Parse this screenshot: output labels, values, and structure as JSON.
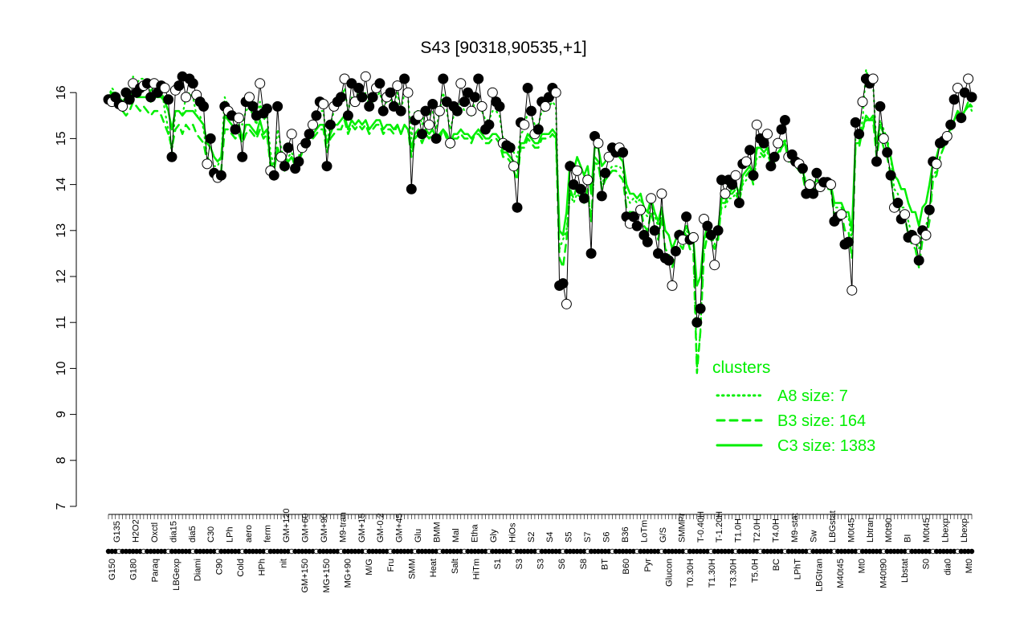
{
  "chart_data": {
    "type": "line",
    "title": "S43 [90318,90535,+1]",
    "xlabel": "",
    "ylabel": "",
    "ylim": [
      7,
      16.6
    ],
    "yticks": [
      7,
      8,
      9,
      10,
      11,
      12,
      13,
      14,
      15,
      16
    ],
    "grid": false,
    "x_labels_top": [
      "G135",
      "H2O2",
      "Oxctl",
      "dia15",
      "dia5",
      "C30",
      "LPh",
      "aero",
      "ferm",
      "GM+120",
      "GM+60",
      "GM+90",
      "M9-tran",
      "GM+15",
      "GM-0.2",
      "GM+45",
      "Glu",
      "BMM",
      "Mal",
      "Etha",
      "Gly",
      "HiOs",
      "S2",
      "S4",
      "S5",
      "S7",
      "S6",
      "B36",
      "LoTm",
      "G/S",
      "SMMPr",
      "T-0.40H",
      "T-1.20H",
      "T1.0H",
      "T2.0H",
      "T4.0H",
      "M9-stat",
      "Sw",
      "LBGstat",
      "M0t45",
      "Lbtran",
      "M0t90",
      "BI",
      "M0t45",
      "Lbexp",
      "Lbexp"
    ],
    "x_labels_bottom": [
      "G150",
      "G180",
      "Paraq",
      "LBGexp",
      "Diami",
      "C90",
      "Cold",
      "HPh",
      "nit",
      "GM+150",
      "MG+150",
      "MG+90",
      "M/G",
      "Fru",
      "SMM",
      "Heat",
      "Salt",
      "HiTm",
      "S1",
      "S3",
      "S3",
      "S6",
      "S8",
      "BT",
      "B60",
      "Pyr",
      "Glucon",
      "T0.30H",
      "T1.30H",
      "T3.30H",
      "T5.0H",
      "BC",
      "LPhT",
      "LBGtran",
      "M40t45",
      "Mt0",
      "M40t90",
      "Lbstat",
      "S0",
      "dia0",
      "Mt0"
    ],
    "series": [
      {
        "name": "",
        "role": "observed",
        "color": "#000000",
        "values": [
          15.85,
          15.8,
          15.9,
          15.75,
          15.7,
          16.0,
          15.85,
          16.2,
          16.0,
          16.1,
          16.15,
          16.2,
          15.9,
          16.2,
          16.0,
          16.15,
          16.1,
          15.85,
          14.6,
          16.05,
          16.15,
          16.35,
          15.9,
          16.3,
          16.2,
          15.95,
          15.8,
          15.7,
          14.45,
          15.0,
          14.25,
          14.15,
          14.2,
          15.7,
          15.6,
          15.5,
          15.2,
          15.45,
          14.6,
          15.8,
          15.9,
          15.7,
          15.5,
          16.2,
          15.55,
          15.65,
          14.3,
          14.2,
          15.7,
          14.6,
          14.4,
          14.8,
          15.1,
          14.35,
          14.5,
          14.8,
          14.9,
          15.1,
          15.3,
          15.5,
          15.8,
          15.75,
          14.4,
          15.3,
          15.7,
          15.8,
          15.9,
          16.3,
          15.5,
          16.2,
          15.8,
          16.1,
          15.9,
          16.35,
          15.7,
          15.9,
          16.1,
          16.2,
          15.6,
          15.9,
          16.0,
          15.7,
          16.15,
          15.6,
          16.3,
          16.0,
          13.9,
          15.4,
          15.5,
          15.1,
          15.6,
          15.3,
          15.75,
          15.0,
          15.6,
          16.3,
          15.8,
          14.9,
          15.7,
          15.6,
          16.2,
          15.8,
          16.0,
          15.6,
          15.9,
          16.3,
          15.7,
          15.2,
          15.3,
          16.0,
          15.8,
          15.7,
          14.9,
          14.85,
          14.8,
          14.4,
          13.5,
          15.35,
          15.3,
          16.1,
          15.6,
          15.1,
          15.2,
          15.8,
          15.7,
          15.9,
          16.1,
          16.0,
          11.8,
          11.85,
          11.4,
          14.4,
          14.0,
          14.3,
          13.9,
          13.7,
          14.1,
          12.5,
          15.05,
          14.9,
          13.75,
          14.25,
          14.6,
          14.8,
          14.7,
          14.8,
          14.7,
          13.3,
          13.15,
          13.3,
          13.1,
          13.45,
          12.9,
          12.75,
          13.7,
          13.0,
          12.5,
          13.8,
          12.4,
          12.35,
          11.8,
          12.55,
          12.9,
          12.8,
          13.3,
          12.8,
          12.85,
          11.0,
          11.3,
          13.25,
          13.1,
          12.9,
          12.25,
          13.0,
          14.1,
          13.8,
          14.1,
          14.0,
          14.2,
          13.6,
          14.45,
          14.5,
          14.75,
          14.2,
          15.3,
          15.0,
          14.9,
          15.1,
          14.4,
          14.6,
          14.9,
          15.2,
          15.4,
          14.6,
          14.65,
          14.5,
          14.45,
          14.35,
          13.8,
          14.0,
          13.8,
          14.25,
          13.95,
          14.05,
          14.05,
          14.0,
          13.2,
          13.3,
          13.35,
          12.7,
          12.75,
          11.7,
          15.35,
          15.1,
          15.8,
          16.3,
          16.2,
          16.3,
          14.5,
          15.7,
          15.0,
          14.7,
          14.2,
          13.5,
          13.6,
          13.25,
          13.35,
          12.85,
          12.9,
          12.8,
          12.35,
          13.0,
          12.9,
          13.45,
          14.5,
          14.45,
          14.9,
          14.95,
          15.05,
          15.3,
          15.85,
          16.1,
          15.45,
          16.0,
          16.3,
          15.9
        ]
      },
      {
        "name": "A8 size: 7",
        "color": "#00ee00",
        "dash": "dotted",
        "values": [
          15.9,
          16.1,
          16.0,
          15.9,
          15.7,
          15.8,
          16.0,
          16.35,
          16.2,
          16.3,
          16.3,
          16.25,
          16.0,
          16.2,
          16.1,
          16.2,
          15.6,
          15.2,
          14.7,
          15.6,
          15.6,
          15.5,
          15.9,
          16.0,
          15.9,
          15.5,
          15.5,
          15.2,
          14.6,
          14.5,
          14.4,
          14.4,
          14.6,
          15.9,
          15.7,
          15.4,
          15.4,
          15.4,
          15.3,
          15.6,
          15.7,
          15.5,
          15.3,
          15.8,
          15.4,
          15.5,
          14.7,
          14.4,
          15.2,
          14.8,
          14.4,
          14.6,
          14.7,
          14.5,
          14.6,
          14.9,
          15.0,
          15.1,
          15.2,
          15.4,
          15.6,
          15.6,
          14.9,
          15.3,
          15.6,
          15.7,
          15.8,
          16.1,
          15.6,
          15.9,
          15.7,
          16.0,
          15.8,
          16.0,
          15.7,
          15.8,
          15.9,
          16.0,
          15.7,
          15.8,
          15.9,
          15.7,
          16.0,
          15.6,
          16.0,
          15.9,
          15.0,
          15.6,
          15.6,
          15.3,
          15.6,
          15.5,
          15.6,
          15.2,
          15.6,
          16.0,
          15.6,
          15.2,
          15.5,
          15.6,
          15.8,
          15.6,
          15.6,
          15.5,
          15.8,
          15.9,
          15.6,
          15.4,
          15.4,
          15.6,
          15.6,
          15.5,
          15.0,
          14.9,
          14.9,
          14.7,
          14.6,
          15.1,
          15.2,
          15.6,
          15.5,
          15.3,
          15.3,
          15.6,
          15.6,
          15.7,
          15.8,
          15.7,
          12.6,
          12.8,
          13.0,
          13.8,
          13.6,
          13.8,
          13.7,
          13.6,
          13.8,
          13.2,
          14.5,
          14.4,
          14.0,
          14.2,
          14.3,
          14.4,
          14.4,
          14.4,
          14.3,
          13.8,
          13.6,
          13.7,
          13.6,
          13.7,
          13.4,
          13.3,
          13.6,
          13.3,
          13.1,
          13.4,
          13.0,
          12.9,
          12.6,
          12.8,
          12.9,
          12.8,
          13.0,
          12.9,
          12.8,
          10.0,
          10.8,
          12.8,
          12.9,
          12.9,
          12.7,
          12.9,
          13.5,
          13.5,
          13.7,
          13.7,
          13.8,
          13.6,
          14.0,
          14.1,
          14.2,
          14.0,
          14.6,
          14.6,
          14.6,
          14.7,
          14.4,
          14.5,
          14.6,
          14.8,
          15.0,
          14.6,
          14.6,
          14.5,
          14.5,
          14.4,
          14.0,
          14.0,
          13.9,
          14.1,
          14.0,
          14.0,
          14.0,
          14.0,
          13.5,
          13.5,
          13.5,
          13.3,
          13.3,
          12.8,
          15.0,
          15.0,
          15.4,
          16.5,
          16.2,
          16.2,
          14.8,
          15.4,
          15.2,
          15.0,
          14.6,
          13.9,
          13.8,
          13.5,
          13.5,
          13.2,
          12.9,
          12.8,
          12.6,
          13.0,
          13.1,
          13.4,
          14.2,
          14.3,
          14.6,
          14.8,
          15.0,
          15.1,
          15.4,
          15.6,
          15.4,
          15.6,
          15.8,
          15.6
        ]
      },
      {
        "name": "B3 size: 164",
        "color": "#00ee00",
        "dash": "dashed",
        "values": [
          15.8,
          15.9,
          15.9,
          15.7,
          15.6,
          15.5,
          15.6,
          15.8,
          15.7,
          15.6,
          15.7,
          15.6,
          15.5,
          15.6,
          15.6,
          15.5,
          15.3,
          15.1,
          14.8,
          15.2,
          15.3,
          15.1,
          15.3,
          15.2,
          15.3,
          15.1,
          15.0,
          14.9,
          14.5,
          14.4,
          14.2,
          14.2,
          14.3,
          15.2,
          15.2,
          15.1,
          15.0,
          15.1,
          14.9,
          15.1,
          15.2,
          15.1,
          15.0,
          15.2,
          15.0,
          15.1,
          14.4,
          14.3,
          14.8,
          14.6,
          14.3,
          14.5,
          14.6,
          14.4,
          14.5,
          14.7,
          14.8,
          14.9,
          15.0,
          15.1,
          15.2,
          15.2,
          14.7,
          15.0,
          15.1,
          15.2,
          15.2,
          15.4,
          15.1,
          15.3,
          15.2,
          15.3,
          15.2,
          15.3,
          15.1,
          15.2,
          15.3,
          15.3,
          15.1,
          15.2,
          15.2,
          15.1,
          15.3,
          15.1,
          15.3,
          15.2,
          14.6,
          15.0,
          15.1,
          14.9,
          15.1,
          15.0,
          15.1,
          14.9,
          15.0,
          15.2,
          15.0,
          14.8,
          15.0,
          15.0,
          15.1,
          15.0,
          15.0,
          14.9,
          15.1,
          15.1,
          15.0,
          14.9,
          14.9,
          15.0,
          15.0,
          14.9,
          14.6,
          14.6,
          14.5,
          14.3,
          14.1,
          14.8,
          14.8,
          15.0,
          14.9,
          14.8,
          14.8,
          15.0,
          15.0,
          15.0,
          15.1,
          15.0,
          12.4,
          12.2,
          12.8,
          13.9,
          13.7,
          14.0,
          13.8,
          13.6,
          13.9,
          13.2,
          14.6,
          14.5,
          13.9,
          14.1,
          14.2,
          14.3,
          14.3,
          14.2,
          14.1,
          13.5,
          13.4,
          13.4,
          13.3,
          13.5,
          13.1,
          13.0,
          13.4,
          13.1,
          12.8,
          13.3,
          12.6,
          12.5,
          12.2,
          12.5,
          12.7,
          12.6,
          12.9,
          12.6,
          12.5,
          9.9,
          10.8,
          12.5,
          12.9,
          12.8,
          12.6,
          12.8,
          13.6,
          13.6,
          13.8,
          13.8,
          13.9,
          13.6,
          14.1,
          14.2,
          14.3,
          14.0,
          14.8,
          14.7,
          14.6,
          14.8,
          14.4,
          14.5,
          14.6,
          14.8,
          14.9,
          14.5,
          14.5,
          14.4,
          14.3,
          14.2,
          13.8,
          13.9,
          13.8,
          14.0,
          13.9,
          13.9,
          13.9,
          13.9,
          13.3,
          13.3,
          13.4,
          13.0,
          13.0,
          12.4,
          14.8,
          14.8,
          15.2,
          15.4,
          15.4,
          15.4,
          14.6,
          15.1,
          14.8,
          14.6,
          14.2,
          13.6,
          13.6,
          13.3,
          13.3,
          12.9,
          12.7,
          12.6,
          12.2,
          12.8,
          12.8,
          13.2,
          14.1,
          14.2,
          14.6,
          14.8,
          15.0,
          15.1,
          15.4,
          15.6,
          15.4,
          15.6,
          15.8,
          15.7
        ]
      },
      {
        "name": "C3 size: 1383",
        "color": "#00ee00",
        "dash": "solid",
        "values": [
          15.9,
          16.0,
          16.0,
          15.9,
          15.8,
          15.9,
          15.9,
          16.0,
          15.9,
          15.9,
          15.9,
          15.9,
          15.8,
          15.9,
          15.9,
          15.9,
          15.8,
          15.6,
          15.2,
          15.6,
          15.6,
          15.5,
          15.6,
          15.6,
          15.6,
          15.5,
          15.4,
          15.3,
          14.9,
          14.8,
          14.6,
          14.5,
          14.6,
          15.5,
          15.4,
          15.3,
          15.2,
          15.3,
          15.0,
          15.3,
          15.3,
          15.2,
          15.1,
          15.4,
          15.1,
          15.2,
          14.5,
          14.3,
          14.8,
          14.6,
          14.3,
          14.5,
          14.6,
          14.4,
          14.5,
          14.7,
          14.8,
          15.0,
          15.1,
          15.2,
          15.3,
          15.3,
          14.9,
          15.1,
          15.3,
          15.3,
          15.4,
          15.5,
          15.2,
          15.4,
          15.3,
          15.4,
          15.3,
          15.4,
          15.2,
          15.3,
          15.4,
          15.4,
          15.2,
          15.3,
          15.3,
          15.2,
          15.3,
          15.1,
          15.3,
          15.2,
          14.8,
          15.1,
          15.2,
          15.0,
          15.2,
          15.1,
          15.2,
          15.0,
          15.1,
          15.2,
          15.1,
          14.9,
          15.1,
          15.1,
          15.2,
          15.1,
          15.1,
          15.0,
          15.1,
          15.2,
          15.1,
          15.0,
          15.0,
          15.1,
          15.1,
          15.0,
          14.7,
          14.7,
          14.6,
          14.5,
          14.3,
          14.9,
          14.9,
          15.1,
          15.0,
          14.9,
          14.9,
          15.1,
          15.1,
          15.1,
          15.2,
          15.1,
          13.0,
          12.9,
          13.4,
          14.5,
          14.3,
          14.6,
          14.4,
          14.2,
          14.4,
          13.8,
          14.8,
          14.8,
          14.4,
          14.5,
          14.6,
          14.7,
          14.7,
          14.6,
          14.5,
          14.0,
          13.8,
          13.8,
          13.7,
          13.8,
          13.5,
          13.4,
          13.7,
          13.4,
          13.2,
          13.5,
          13.0,
          12.9,
          12.6,
          12.8,
          13.0,
          12.9,
          13.1,
          12.9,
          12.8,
          11.8,
          12.0,
          12.8,
          13.1,
          13.0,
          12.9,
          13.0,
          13.7,
          13.7,
          13.8,
          13.9,
          14.0,
          13.8,
          14.2,
          14.3,
          14.4,
          14.2,
          14.8,
          14.8,
          14.7,
          14.8,
          14.5,
          14.6,
          14.7,
          14.8,
          14.9,
          14.6,
          14.6,
          14.5,
          14.4,
          14.3,
          14.0,
          14.1,
          14.0,
          14.1,
          14.0,
          14.0,
          14.0,
          14.0,
          13.6,
          13.6,
          13.6,
          13.4,
          13.4,
          13.0,
          14.9,
          14.9,
          15.2,
          15.5,
          15.4,
          15.5,
          14.9,
          15.3,
          15.1,
          14.9,
          14.6,
          14.2,
          14.1,
          13.9,
          13.9,
          13.6,
          13.4,
          13.4,
          13.1,
          13.5,
          13.6,
          14.0,
          14.5,
          14.6,
          14.9,
          15.0,
          15.1,
          15.2,
          15.4,
          15.6,
          15.5,
          15.6,
          15.7,
          15.7
        ]
      }
    ],
    "legend": {
      "title": "clusters",
      "position": "bottom-right",
      "entries": [
        "A8 size: 7",
        "B3 size: 164",
        "C3 size: 1383"
      ]
    }
  }
}
